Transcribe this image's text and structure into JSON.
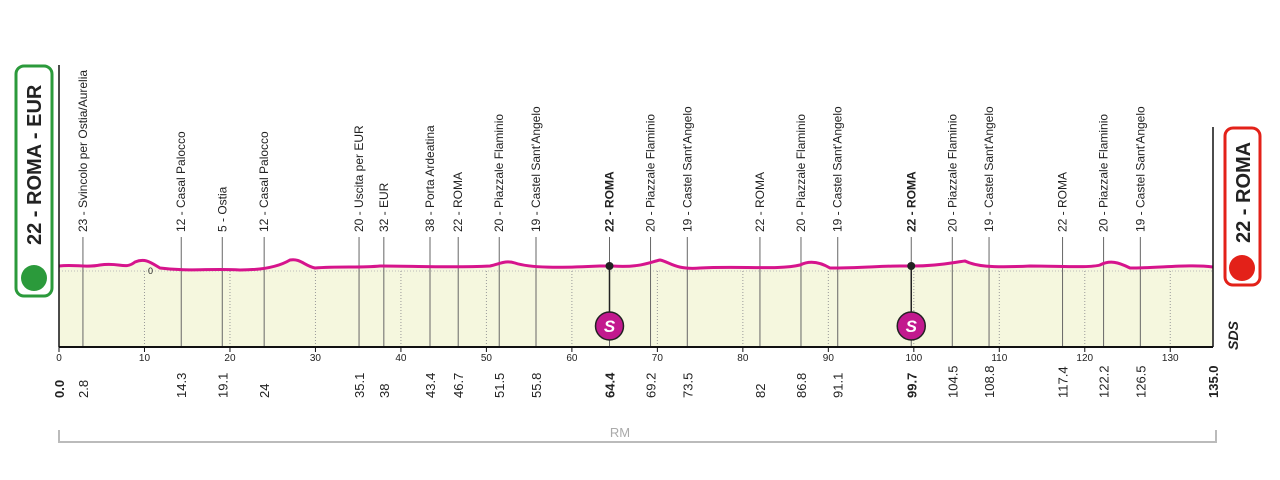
{
  "start": {
    "label": "22 - ROMA - EUR"
  },
  "finish": {
    "label": "22 - ROMA"
  },
  "x_axis": {
    "xlim": [
      0,
      135
    ],
    "ticks": [
      0,
      10,
      20,
      30,
      40,
      50,
      60,
      70,
      80,
      90,
      100,
      110,
      120,
      130
    ]
  },
  "zero_label": "0",
  "km_points": [
    {
      "km": {
        "value": 0,
        "label": "0.0"
      },
      "name": null,
      "bold": true
    },
    {
      "km": 2.8,
      "name": "23 - Svincolo per Ostia/Aurelia"
    },
    {
      "km": 14.3,
      "name": "12 - Casal Palocco"
    },
    {
      "km": 19.1,
      "name": "5 - Ostia"
    },
    {
      "km": 24.0,
      "name": "12 - Casal Palocco"
    },
    {
      "km": 35.1,
      "name": "20 - Uscita per EUR"
    },
    {
      "km": 38.0,
      "name": "32 - EUR"
    },
    {
      "km": 43.4,
      "name": "38 - Porta Ardeatina"
    },
    {
      "km": 46.7,
      "name": "22 - ROMA"
    },
    {
      "km": 51.5,
      "name": "20 - Piazzale Flaminio"
    },
    {
      "km": 55.8,
      "name": "19 - Castel Sant'Angelo"
    },
    {
      "km": 64.4,
      "name": "22 - ROMA",
      "bold": true,
      "sprint": "S"
    },
    {
      "km": 69.2,
      "name": "20 - Piazzale Flaminio"
    },
    {
      "km": 73.5,
      "name": "19 - Castel Sant'Angelo"
    },
    {
      "km": 82.0,
      "name": "22 - ROMA"
    },
    {
      "km": 86.8,
      "name": "20 - Piazzale Flaminio"
    },
    {
      "km": 91.1,
      "name": "19 - Castel Sant'Angelo"
    },
    {
      "km": 99.7,
      "name": "22 - ROMA",
      "bold": true,
      "sprint": "S"
    },
    {
      "km": 104.5,
      "name": "20 - Piazzale Flaminio"
    },
    {
      "km": 108.8,
      "name": "19 - Castel Sant'Angelo"
    },
    {
      "km": 117.4,
      "name": "22 - ROMA"
    },
    {
      "km": 122.2,
      "name": "20 - Piazzale Flaminio"
    },
    {
      "km": 126.5,
      "name": "19 - Castel Sant'Angelo"
    },
    {
      "km": {
        "value": 135,
        "label": "135.0"
      },
      "name": null,
      "bold": true
    }
  ],
  "region": "RM",
  "brand": "SDS"
}
